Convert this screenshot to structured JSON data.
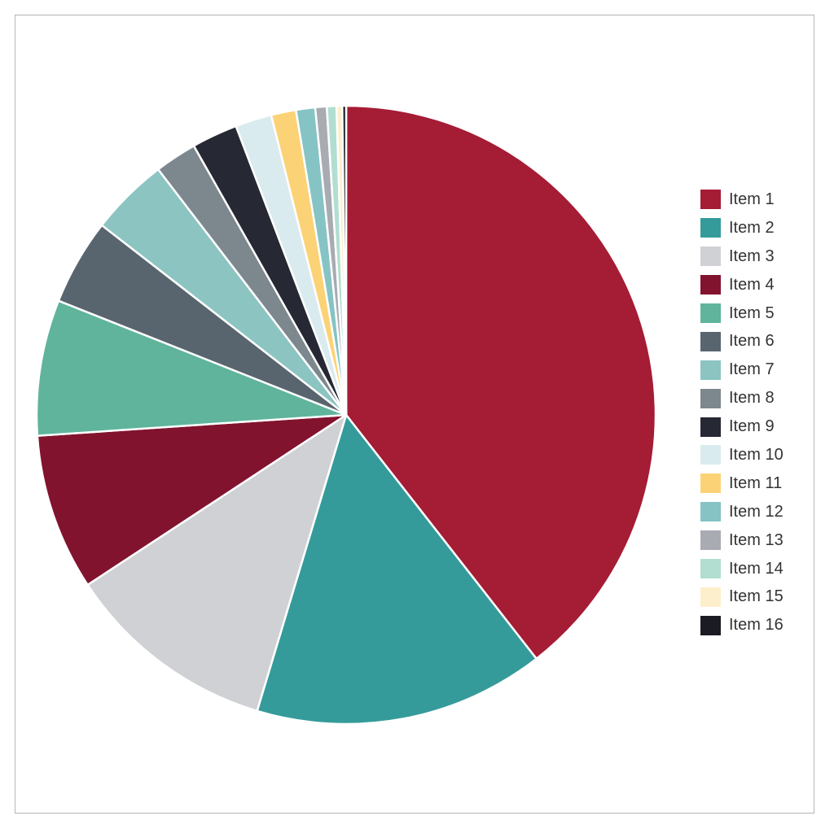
{
  "chart_data": {
    "type": "pie",
    "title": "",
    "start_angle": "12 o'clock, clockwise",
    "legend_position": "right",
    "categories": [
      "Item 1",
      "Item 2",
      "Item 3",
      "Item 4",
      "Item 5",
      "Item 6",
      "Item 7",
      "Item 8",
      "Item 9",
      "Item 10",
      "Item 11",
      "Item 12",
      "Item 13",
      "Item 14",
      "Item 15",
      "Item 16"
    ],
    "values": [
      39.5,
      15.2,
      11.1,
      8.2,
      7.1,
      4.5,
      4.1,
      2.2,
      2.4,
      1.9,
      1.3,
      1.0,
      0.6,
      0.5,
      0.3,
      0.2
    ],
    "colors": [
      "#a51c35",
      "#359b9a",
      "#cfd1d4",
      "#82132e",
      "#5fb49b",
      "#59656e",
      "#8cc4c2",
      "#7d878e",
      "#262833",
      "#d9ebee",
      "#fcd276",
      "#86c3c4",
      "#a9abb2",
      "#b1ded0",
      "#fdefcb",
      "#1b1b24"
    ]
  },
  "legend": {
    "items": [
      {
        "label": "Item 1"
      },
      {
        "label": "Item 2"
      },
      {
        "label": "Item 3"
      },
      {
        "label": "Item 4"
      },
      {
        "label": "Item 5"
      },
      {
        "label": "Item 6"
      },
      {
        "label": "Item 7"
      },
      {
        "label": "Item 8"
      },
      {
        "label": "Item 9"
      },
      {
        "label": "Item 10"
      },
      {
        "label": "Item 11"
      },
      {
        "label": "Item 12"
      },
      {
        "label": "Item 13"
      },
      {
        "label": "Item 14"
      },
      {
        "label": "Item 15"
      },
      {
        "label": "Item 16"
      }
    ]
  }
}
